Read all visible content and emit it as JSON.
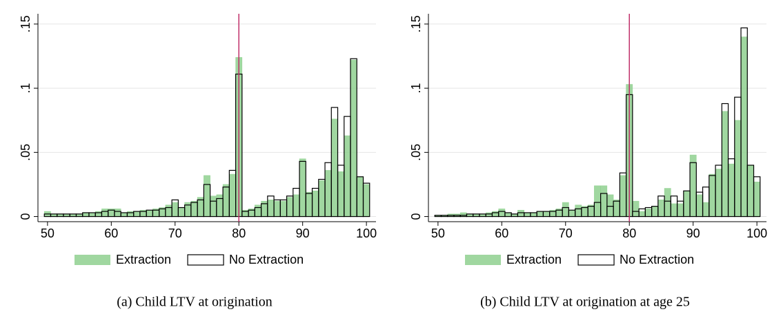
{
  "chart_data": [
    {
      "type": "histogram",
      "caption": "(a) Child LTV at origination",
      "bins": [
        49.5,
        50.5,
        51.5,
        52.5,
        53.5,
        54.5,
        55.5,
        56.5,
        57.5,
        58.5,
        59.5,
        60.5,
        61.5,
        62.5,
        63.5,
        64.5,
        65.5,
        66.5,
        67.5,
        68.5,
        69.5,
        70.5,
        71.5,
        72.5,
        73.5,
        74.5,
        75.5,
        76.5,
        77.5,
        78.5,
        79.5,
        80.5,
        81.5,
        82.5,
        83.5,
        84.5,
        85.5,
        86.5,
        87.5,
        88.5,
        89.5,
        90.5,
        91.5,
        92.5,
        93.5,
        94.5,
        95.5,
        96.5,
        97.5,
        98.5,
        99.5,
        100.5
      ],
      "series": [
        {
          "name": "Extraction",
          "color": "#8fd08f",
          "style": "filled",
          "values": [
            0.004,
            0.002,
            0.002,
            0.002,
            0.002,
            0.002,
            0.003,
            0.003,
            0.004,
            0.006,
            0.006,
            0.006,
            0.003,
            0.004,
            0.004,
            0.005,
            0.005,
            0.006,
            0.007,
            0.009,
            0.011,
            0.007,
            0.011,
            0.012,
            0.015,
            0.032,
            0.016,
            0.017,
            0.025,
            0.033,
            0.124,
            0.005,
            0.006,
            0.009,
            0.012,
            0.013,
            0.012,
            0.012,
            0.015,
            0.017,
            0.045,
            0.019,
            0.02,
            0.028,
            0.036,
            0.076,
            0.035,
            0.063,
            0.122,
            0.031,
            0.025
          ]
        },
        {
          "name": "No Extraction",
          "color": "#000000",
          "style": "outline",
          "values": [
            0.002,
            0.002,
            0.002,
            0.002,
            0.002,
            0.002,
            0.003,
            0.003,
            0.003,
            0.004,
            0.005,
            0.004,
            0.003,
            0.003,
            0.004,
            0.004,
            0.005,
            0.005,
            0.006,
            0.007,
            0.013,
            0.007,
            0.009,
            0.011,
            0.013,
            0.025,
            0.012,
            0.014,
            0.023,
            0.036,
            0.111,
            0.004,
            0.005,
            0.007,
            0.01,
            0.016,
            0.013,
            0.013,
            0.016,
            0.022,
            0.043,
            0.018,
            0.022,
            0.029,
            0.042,
            0.085,
            0.04,
            0.078,
            0.123,
            0.031,
            0.026
          ]
        }
      ],
      "reference_line": 80,
      "reference_color": "#c0306a",
      "xlim": [
        48.5,
        101.5
      ],
      "xticks": [
        50,
        60,
        70,
        80,
        90,
        100
      ],
      "ylim": [
        -0.004,
        0.158
      ],
      "yticks": [
        0,
        {
          "value": 0.05,
          "label": ".05"
        },
        {
          "value": 0.1,
          "label": ".1"
        },
        {
          "value": 0.15,
          "label": ".15"
        }
      ],
      "grid": true
    },
    {
      "type": "histogram",
      "caption": "(b) Child LTV at origination at age 25",
      "bins": [
        49.5,
        50.5,
        51.5,
        52.5,
        53.5,
        54.5,
        55.5,
        56.5,
        57.5,
        58.5,
        59.5,
        60.5,
        61.5,
        62.5,
        63.5,
        64.5,
        65.5,
        66.5,
        67.5,
        68.5,
        69.5,
        70.5,
        71.5,
        72.5,
        73.5,
        74.5,
        75.5,
        76.5,
        77.5,
        78.5,
        79.5,
        80.5,
        81.5,
        82.5,
        83.5,
        84.5,
        85.5,
        86.5,
        87.5,
        88.5,
        89.5,
        90.5,
        91.5,
        92.5,
        93.5,
        94.5,
        95.5,
        96.5,
        97.5,
        98.5,
        99.5,
        100.5
      ],
      "series": [
        {
          "name": "Extraction",
          "color": "#8fd08f",
          "style": "filled",
          "values": [
            0.001,
            0.001,
            0.002,
            0.002,
            0.003,
            0.002,
            0.002,
            0.002,
            0.003,
            0.004,
            0.006,
            0.003,
            0.002,
            0.005,
            0.003,
            0.003,
            0.004,
            0.004,
            0.005,
            0.006,
            0.011,
            0.005,
            0.009,
            0.008,
            0.009,
            0.024,
            0.024,
            0.017,
            0.013,
            0.032,
            0.103,
            0.012,
            0.004,
            0.006,
            0.008,
            0.013,
            0.022,
            0.01,
            0.01,
            0.02,
            0.048,
            0.017,
            0.011,
            0.033,
            0.037,
            0.082,
            0.041,
            0.075,
            0.14,
            0.04,
            0.027
          ]
        },
        {
          "name": "No Extraction",
          "color": "#000000",
          "style": "outline",
          "values": [
            0.001,
            0.001,
            0.001,
            0.001,
            0.001,
            0.002,
            0.002,
            0.002,
            0.002,
            0.003,
            0.004,
            0.003,
            0.002,
            0.003,
            0.003,
            0.003,
            0.004,
            0.004,
            0.004,
            0.005,
            0.007,
            0.005,
            0.006,
            0.007,
            0.008,
            0.011,
            0.018,
            0.008,
            0.012,
            0.034,
            0.095,
            0.004,
            0.006,
            0.007,
            0.008,
            0.016,
            0.012,
            0.016,
            0.012,
            0.02,
            0.042,
            0.019,
            0.023,
            0.032,
            0.04,
            0.088,
            0.045,
            0.093,
            0.147,
            0.04,
            0.031
          ]
        }
      ],
      "reference_line": 80,
      "reference_color": "#c0306a",
      "xlim": [
        48.5,
        101.5
      ],
      "xticks": [
        50,
        60,
        70,
        80,
        90,
        100
      ],
      "ylim": [
        -0.004,
        0.158
      ],
      "yticks": [
        0,
        {
          "value": 0.05,
          "label": ".05"
        },
        {
          "value": 0.1,
          "label": ".1"
        },
        {
          "value": 0.15,
          "label": ".15"
        }
      ],
      "grid": true
    }
  ]
}
